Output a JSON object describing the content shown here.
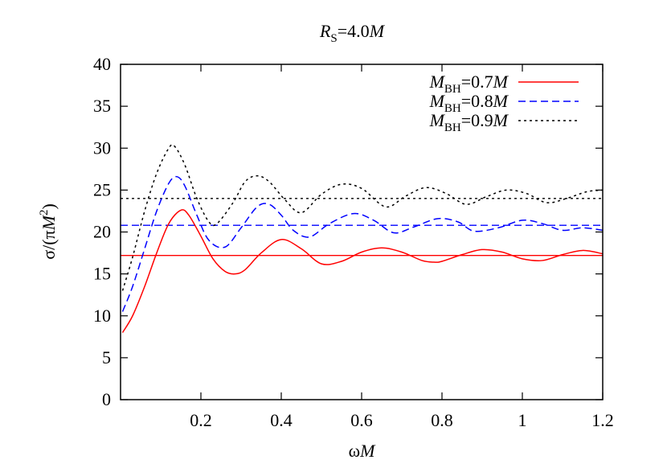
{
  "chart_data": {
    "type": "line",
    "title": {
      "main": "R",
      "sub": "S",
      "rest": "=4.0",
      "unit": "M"
    },
    "xlabel": {
      "main": "ω",
      "unit": "M"
    },
    "ylabel": {
      "prefix": "σ/(π",
      "var": "M",
      "sup": "2",
      "suffix": ")"
    },
    "xlim": [
      0,
      1.2
    ],
    "ylim": [
      0,
      40
    ],
    "xticks": [
      0.2,
      0.4,
      0.6,
      0.8,
      1,
      1.2
    ],
    "xtick_labels": [
      "0.2",
      "0.4",
      "0.6",
      "0.8",
      "1",
      "1.2"
    ],
    "yticks": [
      0,
      5,
      10,
      15,
      20,
      25,
      30,
      35,
      40
    ],
    "ytick_labels": [
      "0",
      "5",
      "10",
      "15",
      "20",
      "25",
      "30",
      "35",
      "40"
    ],
    "grid": false,
    "legend_position": "top-right",
    "series": [
      {
        "name": "M_BH=0.7M",
        "legend": {
          "var": "M",
          "sub": "BH",
          "rest": "=0.7",
          "unit": "M"
        },
        "color": "#ff0000",
        "dash": "solid",
        "asymptote": 17.2,
        "x": [
          0.005,
          0.03,
          0.06,
          0.09,
          0.12,
          0.15,
          0.17,
          0.2,
          0.23,
          0.26,
          0.285,
          0.31,
          0.35,
          0.4,
          0.45,
          0.5,
          0.55,
          0.6,
          0.65,
          0.7,
          0.75,
          0.78,
          0.8,
          0.85,
          0.9,
          0.95,
          1.0,
          1.05,
          1.1,
          1.15,
          1.2
        ],
        "y": [
          8.0,
          10.0,
          13.5,
          17.5,
          21.0,
          22.6,
          22.0,
          19.5,
          16.8,
          15.3,
          15.0,
          15.5,
          17.5,
          19.1,
          18.0,
          16.2,
          16.5,
          17.6,
          18.1,
          17.6,
          16.6,
          16.4,
          16.5,
          17.3,
          17.9,
          17.6,
          16.8,
          16.6,
          17.3,
          17.8,
          17.4
        ]
      },
      {
        "name": "M_BH=0.8M",
        "legend": {
          "var": "M",
          "sub": "BH",
          "rest": "=0.8",
          "unit": "M"
        },
        "color": "#0000ff",
        "dash": "dashed",
        "asymptote": 20.8,
        "x": [
          0.005,
          0.03,
          0.06,
          0.09,
          0.12,
          0.14,
          0.16,
          0.19,
          0.22,
          0.26,
          0.3,
          0.34,
          0.37,
          0.4,
          0.43,
          0.47,
          0.52,
          0.58,
          0.63,
          0.68,
          0.73,
          0.79,
          0.84,
          0.88,
          0.94,
          1.0,
          1.05,
          1.1,
          1.15,
          1.2
        ],
        "y": [
          10.5,
          13.5,
          18.0,
          22.5,
          25.8,
          26.6,
          25.5,
          22.0,
          19.0,
          18.2,
          20.5,
          23.0,
          23.3,
          22.0,
          20.2,
          19.4,
          21.0,
          22.2,
          21.4,
          19.9,
          20.6,
          21.6,
          21.2,
          20.1,
          20.5,
          21.4,
          21.0,
          20.2,
          20.5,
          20.2
        ]
      },
      {
        "name": "M_BH=0.9M",
        "legend": {
          "var": "M",
          "sub": "BH",
          "rest": "=0.9",
          "unit": "M"
        },
        "color": "#000000",
        "dash": "dotted",
        "asymptote": 24.0,
        "x": [
          0.005,
          0.03,
          0.06,
          0.09,
          0.12,
          0.135,
          0.16,
          0.19,
          0.22,
          0.24,
          0.28,
          0.31,
          0.34,
          0.37,
          0.41,
          0.45,
          0.5,
          0.55,
          0.6,
          0.66,
          0.71,
          0.76,
          0.81,
          0.86,
          0.91,
          0.96,
          1.01,
          1.06,
          1.11,
          1.16,
          1.2
        ],
        "y": [
          13.0,
          17.0,
          22.5,
          27.0,
          30.0,
          30.2,
          28.0,
          24.0,
          21.2,
          21.0,
          23.5,
          26.0,
          26.7,
          26.0,
          23.8,
          22.3,
          24.5,
          25.7,
          25.2,
          23.0,
          24.3,
          25.3,
          24.6,
          23.3,
          24.2,
          25.0,
          24.6,
          23.5,
          24.0,
          24.8,
          25.0
        ]
      }
    ]
  }
}
